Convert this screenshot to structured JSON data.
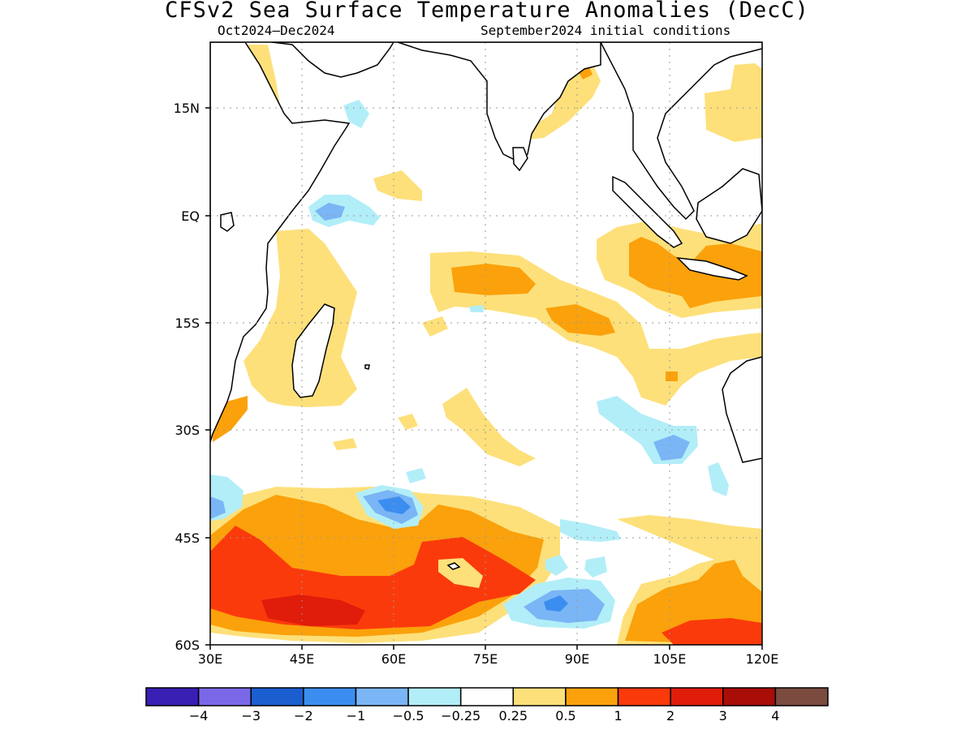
{
  "title": "CFSv2 Sea Surface Temperature Anomalies (DecC)",
  "subtitle_left": "Oct2024–Dec2024",
  "subtitle_right": "September2024 initial conditions",
  "map": {
    "region": "Indian Ocean",
    "lon_range": [
      30,
      120
    ],
    "lat_range": [
      -60,
      24
    ],
    "grid": true,
    "lon_ticks": [
      "30E",
      "45E",
      "60E",
      "75E",
      "90E",
      "105E",
      "120E"
    ],
    "lat_ticks": [
      "15N",
      "EQ",
      "15S",
      "30S",
      "45S",
      "60S"
    ]
  },
  "colorbar": {
    "levels": [
      "−4",
      "−3",
      "−2",
      "−1",
      "−0.5",
      "−0.25",
      "0.25",
      "0.5",
      "1",
      "2",
      "3",
      "4"
    ],
    "colors": [
      "#3a1fb4",
      "#7b68e8",
      "#1b5ecf",
      "#3b8ef0",
      "#7ab5f5",
      "#b2eef8",
      "#ffffff",
      "#fde07a",
      "#fba10b",
      "#fb3a0b",
      "#e01c0a",
      "#a80d07",
      "#7b4b3f"
    ]
  },
  "chart_data": {
    "type": "heatmap",
    "title": "CFSv2 Sea Surface Temperature Anomalies (DecC)",
    "variable": "SST anomaly",
    "units": "DecC",
    "period": "Oct2024–Dec2024",
    "initial_conditions": "September2024",
    "xlim": [
      30,
      120
    ],
    "ylim": [
      -60,
      24
    ],
    "x_ticks": [
      "30E",
      "45E",
      "60E",
      "75E",
      "90E",
      "105E",
      "120E"
    ],
    "y_ticks": [
      "15N",
      "EQ",
      "15S",
      "30S",
      "45S",
      "60S"
    ],
    "contour_levels": [
      -4,
      -3,
      -2,
      -1,
      -0.5,
      -0.25,
      0.25,
      0.5,
      1,
      2,
      3,
      4
    ],
    "features": [
      {
        "region": "Southwest Indian Ocean 35S-60S, 30E-80E",
        "anomaly_range": [
          1,
          3
        ]
      },
      {
        "region": "Maritime Continent / Java Sea",
        "anomaly_range": [
          0.5,
          1
        ]
      },
      {
        "region": "Central Indian Ocean 10S",
        "anomaly_range": [
          0.5,
          1
        ]
      },
      {
        "region": "South of 50S near 85E-90E",
        "anomaly_range": [
          -1,
          -0.5
        ]
      },
      {
        "region": "Southern Ocean 40S 60E",
        "anomaly_range": [
          -1,
          -0.5
        ]
      },
      {
        "region": "Near 100E 32S",
        "anomaly_range": [
          -1,
          -0.5
        ]
      },
      {
        "region": "Southeast Indian Ocean 50S-60S, 100E-120E",
        "anomaly_range": [
          1,
          2
        ]
      }
    ]
  }
}
